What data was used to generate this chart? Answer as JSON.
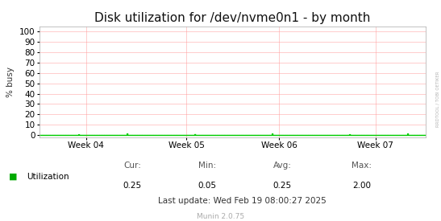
{
  "title": "Disk utilization for /dev/nvme0n1 - by month",
  "ylabel": "% busy",
  "background_color": "#ffffff",
  "plot_bg_color": "#ffffff",
  "grid_color": "#ff9999",
  "yticks": [
    0,
    10,
    20,
    30,
    40,
    50,
    60,
    70,
    80,
    90,
    100
  ],
  "ylim": [
    -2,
    105
  ],
  "xtick_labels": [
    "Week 04",
    "Week 05",
    "Week 06",
    "Week 07"
  ],
  "line_color": "#00cc00",
  "legend_label": "Utilization",
  "legend_color": "#00aa00",
  "cur_label": "Cur:",
  "cur_value": "0.25",
  "min_label": "Min:",
  "min_value": "0.05",
  "avg_label": "Avg:",
  "avg_value": "0.25",
  "max_label": "Max:",
  "max_value": "2.00",
  "last_update": "Last update: Wed Feb 19 08:00:27 2025",
  "munin_label": "Munin 2.0.75",
  "watermark": "RRDTOOL / TOBI OETIKER",
  "title_fontsize": 11,
  "axis_fontsize": 7.5,
  "small_fontsize": 6.5
}
